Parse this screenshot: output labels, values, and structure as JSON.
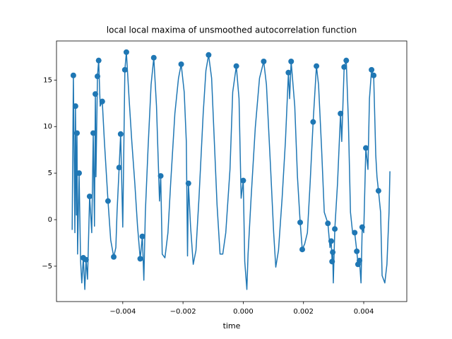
{
  "chart_data": {
    "type": "line",
    "title": "local local maxima of unsmoothed autocorrelation function",
    "xlabel": "time",
    "xlim": [
      -0.0062,
      0.00543
    ],
    "ylim": [
      -8.8,
      19.2
    ],
    "xticks": [
      {
        "value": -0.004,
        "label": "−0.004"
      },
      {
        "value": -0.002,
        "label": "−0.002"
      },
      {
        "value": 0,
        "label": "0.000"
      },
      {
        "value": 0.002,
        "label": "0.002"
      },
      {
        "value": 0.004,
        "label": "0.004"
      }
    ],
    "yticks": [
      {
        "value": -5,
        "label": "−5"
      },
      0,
      5,
      10,
      15
    ],
    "series": [
      {
        "style": "line",
        "color": "#1f77b4",
        "x": [
          -0.00568,
          -0.00564,
          -0.00559,
          -0.00557,
          -0.00554,
          -0.00552,
          -0.0055,
          -0.00545,
          -0.0054,
          -0.00536,
          -0.00531,
          -0.00526,
          -0.00522,
          -0.00517,
          -0.0051,
          -0.00503,
          -0.00498,
          -0.00494,
          -0.00491,
          -0.00489,
          -0.00484,
          -0.0048,
          -0.00475,
          -0.00468,
          -0.00461,
          -0.00449,
          -0.0044,
          -0.0043,
          -0.00423,
          -0.00419,
          -0.00412,
          -0.00407,
          -0.004,
          -0.00393,
          -0.00388,
          -0.00379,
          -0.0037,
          -0.0036,
          -0.00351,
          -0.00342,
          -0.00335,
          -0.0033,
          -0.00325,
          -0.00316,
          -0.00306,
          -0.00297,
          -0.00288,
          -0.00278,
          -0.00274,
          -0.00269,
          -0.0026,
          -0.0025,
          -0.00241,
          -0.00227,
          -0.00215,
          -0.00206,
          -0.00196,
          -0.00189,
          -0.00185,
          -0.00182,
          -0.00175,
          -0.00166,
          -0.00157,
          -0.00147,
          -0.00133,
          -0.00124,
          -0.00115,
          -0.00105,
          -0.00096,
          -0.00087,
          -0.00077,
          -0.00068,
          -0.00058,
          -0.00044,
          -0.00035,
          -0.00023,
          -0.00014,
          -7e-05,
          0,
          5e-05,
          0.00012,
          0.00016,
          0.00026,
          0.0004,
          0.00054,
          0.00068,
          0.00077,
          0.00091,
          0.00101,
          0.00108,
          0.00117,
          0.00129,
          0.0014,
          0.0015,
          0.00154,
          0.00159,
          0.00171,
          0.0018,
          0.00189,
          0.00196,
          0.00204,
          0.00213,
          0.00222,
          0.00232,
          0.00243,
          0.0025,
          0.0026,
          0.00269,
          0.00281,
          0.00288,
          0.00292,
          0.00295,
          0.00297,
          0.00299,
          0.00304,
          0.00313,
          0.00323,
          0.00327,
          0.00335,
          0.00342,
          0.00349,
          0.00356,
          0.00363,
          0.0037,
          0.00377,
          0.00381,
          0.00386,
          0.00391,
          0.00395,
          0.004,
          0.00407,
          0.00414,
          0.00419,
          0.00426,
          0.00433,
          0.0044,
          0.00444,
          0.00449,
          0.00456,
          0.00461,
          0.0047,
          0.00477,
          0.00484,
          0.00487
        ],
        "values": [
          -1.1,
          15.5,
          -1.4,
          12.2,
          0.5,
          9.3,
          -3.7,
          5.0,
          -4.5,
          -6.8,
          -4.1,
          -7.5,
          -4.3,
          -6.4,
          2.5,
          -1.4,
          9.3,
          -0.7,
          13.5,
          4.6,
          15.4,
          17.1,
          12.2,
          12.7,
          8.4,
          2.0,
          -2.2,
          -4.0,
          -3.0,
          0.8,
          5.6,
          9.2,
          -0.8,
          16.1,
          18.0,
          13.0,
          8.4,
          3.9,
          -0.7,
          -4.2,
          -1.8,
          -6.5,
          0.8,
          7.7,
          14.5,
          17.4,
          12.2,
          2.0,
          4.7,
          -3.7,
          -4.1,
          -1.4,
          3.9,
          11.4,
          15.2,
          16.7,
          13.7,
          8.4,
          -3.9,
          3.9,
          -0.7,
          -4.8,
          -3.3,
          2.3,
          11.4,
          16.0,
          17.7,
          15.2,
          8.4,
          1.6,
          -3.7,
          -3.7,
          -1.4,
          5.4,
          13.7,
          16.5,
          13.0,
          2.3,
          4.2,
          -4.5,
          -7.5,
          -3.7,
          2.3,
          9.9,
          15.2,
          17.0,
          14.5,
          5.4,
          -1.4,
          -5.1,
          -3.3,
          2.3,
          8.4,
          15.8,
          13.0,
          17.0,
          12.2,
          4.6,
          -0.3,
          -3.2,
          -2.6,
          -1.4,
          3.9,
          10.5,
          16.5,
          14.5,
          7.7,
          0.8,
          -0.4,
          -3.0,
          -2.3,
          -4.5,
          -3.5,
          -6.8,
          -1.0,
          3.9,
          11.4,
          8.4,
          16.4,
          17.1,
          10.7,
          0.8,
          -1.4,
          -1.4,
          -3.4,
          -4.8,
          -4.4,
          -6.8,
          -0.8,
          -1.4,
          7.7,
          5.4,
          13.0,
          16.1,
          15.5,
          6.9,
          4.6,
          3.1,
          0.8,
          -6.0,
          -6.8,
          -4.8,
          0.8,
          5.2
        ]
      },
      {
        "style": "points",
        "color": "#1f77b4",
        "x": [
          -0.00564,
          -0.00557,
          -0.00552,
          -0.00545,
          -0.00531,
          -0.00522,
          -0.0051,
          -0.00498,
          -0.00491,
          -0.00484,
          -0.0048,
          -0.00468,
          -0.00449,
          -0.0043,
          -0.00412,
          -0.00407,
          -0.00393,
          -0.00388,
          -0.00342,
          -0.00335,
          -0.00297,
          -0.00274,
          -0.00206,
          -0.00182,
          -0.00115,
          -0.00023,
          0,
          0.00068,
          0.0015,
          0.00159,
          0.00189,
          0.00196,
          0.00232,
          0.00243,
          0.00281,
          0.00292,
          0.00295,
          0.00297,
          0.00304,
          0.00323,
          0.00335,
          0.00342,
          0.0037,
          0.00377,
          0.00381,
          0.00386,
          0.00395,
          0.00407,
          0.00426,
          0.00433,
          0.00449
        ],
        "values": [
          15.5,
          12.2,
          9.3,
          5.0,
          -4.1,
          -4.3,
          2.5,
          9.3,
          13.5,
          15.4,
          17.1,
          12.7,
          2.0,
          -4.0,
          5.6,
          9.2,
          16.1,
          18.0,
          -4.2,
          -1.8,
          17.4,
          4.7,
          16.7,
          3.9,
          17.7,
          16.5,
          4.2,
          17.0,
          15.8,
          17.0,
          -0.3,
          -3.2,
          10.5,
          16.5,
          -0.4,
          -2.3,
          -4.5,
          -3.5,
          -1.0,
          11.4,
          16.4,
          17.1,
          -1.4,
          -3.4,
          -4.8,
          -4.4,
          -0.8,
          7.7,
          16.1,
          15.5,
          3.1
        ]
      }
    ]
  }
}
